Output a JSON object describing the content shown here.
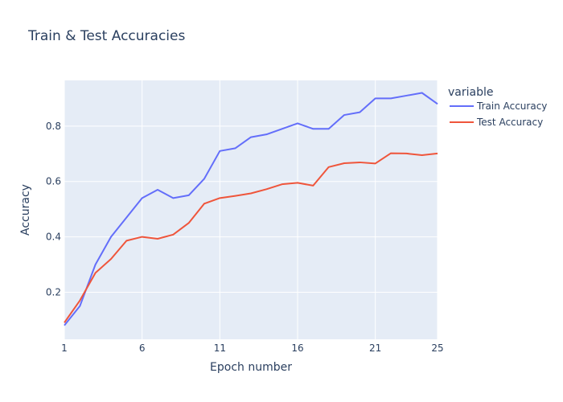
{
  "chart_data": {
    "type": "line",
    "title": "Train & Test Accuracies",
    "xlabel": "Epoch number",
    "ylabel": "Accuracy",
    "legend_title": "variable",
    "legend_position": "top-right",
    "grid": true,
    "xlim": [
      1,
      25
    ],
    "ylim": [
      0.03,
      0.965
    ],
    "x_ticks": [
      1,
      6,
      11,
      16,
      21,
      25
    ],
    "y_ticks": [
      0.2,
      0.4,
      0.6,
      0.8
    ],
    "y_tick_labels": [
      "0.2",
      "0.4",
      "0.6",
      "0.8"
    ],
    "x": [
      1,
      2,
      3,
      4,
      5,
      6,
      7,
      8,
      9,
      10,
      11,
      12,
      13,
      14,
      15,
      16,
      17,
      18,
      19,
      20,
      21,
      22,
      23,
      24,
      25
    ],
    "series": [
      {
        "name": "Train Accuracy",
        "color": "#636efa",
        "values": [
          0.08,
          0.15,
          0.3,
          0.4,
          0.47,
          0.54,
          0.57,
          0.54,
          0.55,
          0.61,
          0.71,
          0.72,
          0.76,
          0.77,
          0.79,
          0.81,
          0.79,
          0.79,
          0.84,
          0.85,
          0.9,
          0.9,
          0.91,
          0.92,
          0.88
        ]
      },
      {
        "name": "Test Accuracy",
        "color": "#ef553b",
        "values": [
          0.09,
          0.17,
          0.27,
          0.32,
          0.386,
          0.4,
          0.393,
          0.408,
          0.45,
          0.52,
          0.54,
          0.548,
          0.557,
          0.572,
          0.59,
          0.595,
          0.585,
          0.652,
          0.666,
          0.669,
          0.665,
          0.702,
          0.701,
          0.695,
          0.701
        ]
      }
    ]
  },
  "colors": {
    "plot_bg": "#e5ecf6",
    "grid": "#ffffff",
    "text": "#2a3f5f"
  }
}
